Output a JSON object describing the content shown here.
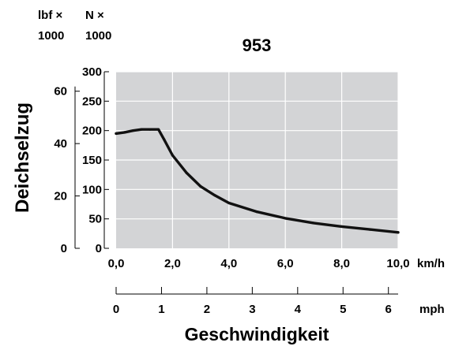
{
  "chart_data": {
    "type": "line",
    "title": "953",
    "ylabel": "Deichselzug",
    "xlabel": "Geschwindigkeit",
    "x_primary": {
      "unit": "km/h",
      "range": [
        0,
        10
      ],
      "ticks": [
        {
          "value": 0,
          "label": "0,0"
        },
        {
          "value": 2,
          "label": "2,0"
        },
        {
          "value": 4,
          "label": "4,0"
        },
        {
          "value": 6,
          "label": "6,0"
        },
        {
          "value": 8,
          "label": "8,0"
        },
        {
          "value": 10,
          "label": "10,0"
        }
      ]
    },
    "x_secondary": {
      "unit": "mph",
      "ticks": [
        {
          "value": 0,
          "label": "0"
        },
        {
          "value": 1,
          "label": "1"
        },
        {
          "value": 2,
          "label": "2"
        },
        {
          "value": 3,
          "label": "3"
        },
        {
          "value": 4,
          "label": "4"
        },
        {
          "value": 5,
          "label": "5"
        },
        {
          "value": 6,
          "label": "6"
        }
      ]
    },
    "y_primary": {
      "unit_line1": "N ×",
      "unit_line2": "1000",
      "range": [
        0,
        300
      ],
      "ticks": [
        {
          "value": 0,
          "label": "0"
        },
        {
          "value": 50,
          "label": "50"
        },
        {
          "value": 100,
          "label": "100"
        },
        {
          "value": 150,
          "label": "150"
        },
        {
          "value": 200,
          "label": "200"
        },
        {
          "value": 250,
          "label": "250"
        },
        {
          "value": 300,
          "label": "300"
        }
      ]
    },
    "y_secondary": {
      "unit_line1": "lbf ×",
      "unit_line2": "1000",
      "ticks": [
        {
          "value": 0,
          "label": "0"
        },
        {
          "value": 20,
          "label": "20"
        },
        {
          "value": 40,
          "label": "40"
        },
        {
          "value": 60,
          "label": "60"
        }
      ]
    },
    "grid": true,
    "colors": {
      "plot_background": "#d3d4d6",
      "grid": "#ffffff",
      "curve": "#111111",
      "axis": "#000000"
    },
    "series": [
      {
        "x": [
          0,
          0.3,
          0.6,
          0.9,
          1.2,
          1.5,
          1.7,
          2.0,
          2.5,
          3.0,
          3.5,
          4.0,
          5.0,
          6.0,
          7.0,
          8.0,
          9.0,
          10.0
        ],
        "y": [
          195,
          197,
          200,
          202,
          202,
          202,
          185,
          158,
          128,
          105,
          90,
          77,
          62,
          51,
          43,
          37,
          32,
          27
        ]
      }
    ]
  }
}
